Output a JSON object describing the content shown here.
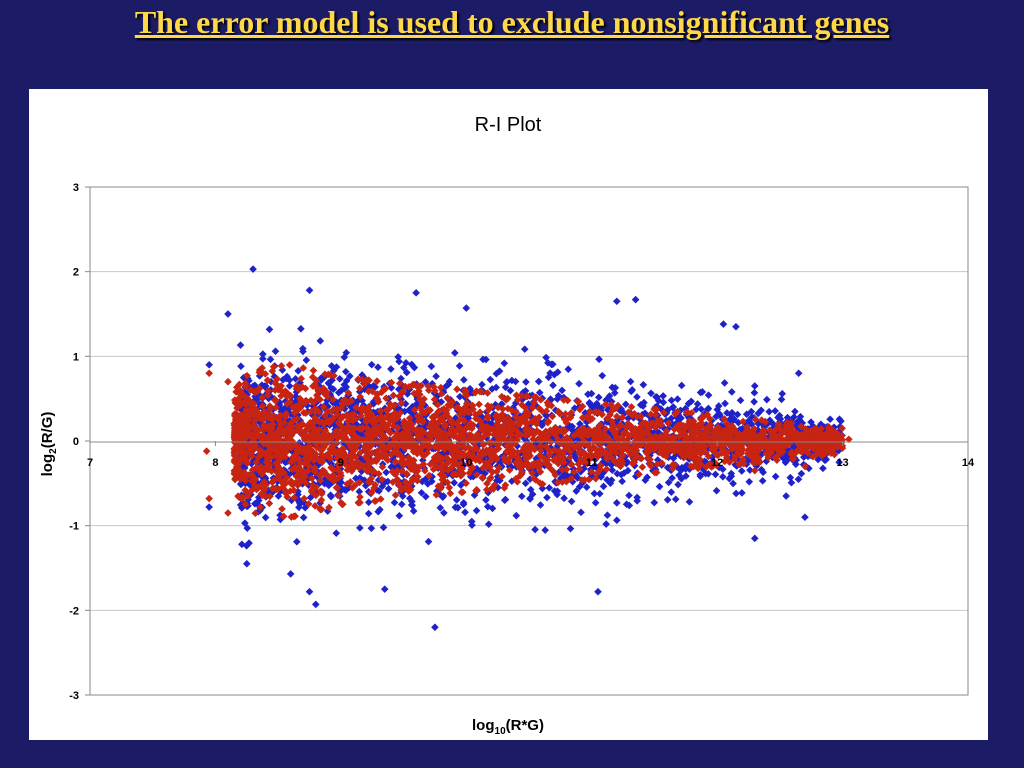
{
  "slide": {
    "title": "The error model is used to exclude nonsignificant genes"
  },
  "chart_data": {
    "type": "scatter",
    "title": "R-I Plot",
    "xlabel": {
      "base": "log",
      "sub": "10",
      "rest": "(R*G)"
    },
    "ylabel": {
      "base": "log",
      "sub": "2",
      "rest": "(R/G)"
    },
    "xlim": [
      7,
      14
    ],
    "ylim": [
      -3,
      3
    ],
    "x_ticks": [
      7,
      8,
      9,
      10,
      11,
      12,
      13,
      14
    ],
    "y_ticks": [
      -3,
      -2,
      -1,
      0,
      1,
      2,
      3
    ],
    "grid": {
      "horizontal": true,
      "vertical": false
    },
    "legend": "none",
    "series": [
      {
        "color": "#1f22c8",
        "profile": [
          {
            "x": 8.2,
            "spread": 0.9
          },
          {
            "x": 8.5,
            "spread": 1.0
          },
          {
            "x": 9.0,
            "spread": 0.95
          },
          {
            "x": 10.0,
            "spread": 0.85
          },
          {
            "x": 11.0,
            "spread": 0.75
          },
          {
            "x": 12.0,
            "spread": 0.55
          },
          {
            "x": 12.6,
            "spread": 0.4
          },
          {
            "x": 13.0,
            "spread": 0.25
          }
        ],
        "outliers": [
          {
            "x": 8.3,
            "y": 2.03
          },
          {
            "x": 8.75,
            "y": 1.78
          },
          {
            "x": 9.6,
            "y": 1.75
          },
          {
            "x": 10.0,
            "y": 1.57
          },
          {
            "x": 11.2,
            "y": 1.65
          },
          {
            "x": 11.35,
            "y": 1.67
          },
          {
            "x": 12.05,
            "y": 1.38
          },
          {
            "x": 12.15,
            "y": 1.35
          },
          {
            "x": 8.1,
            "y": 1.5
          },
          {
            "x": 12.65,
            "y": 0.8
          },
          {
            "x": 12.3,
            "y": 0.65
          },
          {
            "x": 7.95,
            "y": 0.9
          },
          {
            "x": 8.8,
            "y": -1.93
          },
          {
            "x": 8.75,
            "y": -1.78
          },
          {
            "x": 9.35,
            "y": -1.75
          },
          {
            "x": 9.75,
            "y": -2.2
          },
          {
            "x": 11.05,
            "y": -1.78
          },
          {
            "x": 8.25,
            "y": -1.45
          },
          {
            "x": 8.6,
            "y": -1.57
          },
          {
            "x": 12.3,
            "y": -1.15
          },
          {
            "x": 12.7,
            "y": -0.9
          },
          {
            "x": 12.55,
            "y": -0.65
          },
          {
            "x": 7.95,
            "y": -0.78
          }
        ]
      },
      {
        "color": "#c82412",
        "profile": [
          {
            "x": 8.15,
            "spread": 0.6
          },
          {
            "x": 8.3,
            "spread": 0.85
          },
          {
            "x": 8.6,
            "spread": 0.9
          },
          {
            "x": 9.0,
            "spread": 0.75
          },
          {
            "x": 10.0,
            "spread": 0.6
          },
          {
            "x": 11.0,
            "spread": 0.45
          },
          {
            "x": 12.0,
            "spread": 0.3
          },
          {
            "x": 13.0,
            "spread": 0.15
          }
        ],
        "outliers": [
          {
            "x": 7.95,
            "y": 0.8
          },
          {
            "x": 8.1,
            "y": 0.7
          },
          {
            "x": 7.95,
            "y": -0.68
          },
          {
            "x": 8.1,
            "y": -0.85
          },
          {
            "x": 7.93,
            "y": -0.12
          },
          {
            "x": 13.05,
            "y": 0.02
          },
          {
            "x": 12.9,
            "y": -0.1
          },
          {
            "x": 12.7,
            "y": -0.3
          },
          {
            "x": 12.3,
            "y": -0.35
          }
        ]
      }
    ]
  }
}
